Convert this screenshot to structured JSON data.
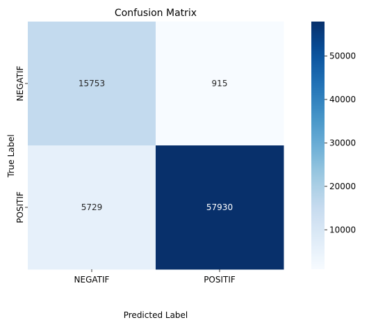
{
  "chart_data": {
    "type": "heatmap",
    "title": "Confusion Matrix",
    "xlabel": "Predicted Label",
    "ylabel": "True Label",
    "x_categories": [
      "NEGATIF",
      "POSITIF"
    ],
    "y_categories": [
      "NEGATIF",
      "POSITIF"
    ],
    "values": [
      [
        15753,
        915
      ],
      [
        5729,
        57930
      ]
    ],
    "colormap": "Blues",
    "colorbar": {
      "vmin": 915,
      "vmax": 57930,
      "ticks": [
        10000,
        20000,
        30000,
        40000,
        50000
      ]
    },
    "grid": false,
    "annotations": true
  }
}
